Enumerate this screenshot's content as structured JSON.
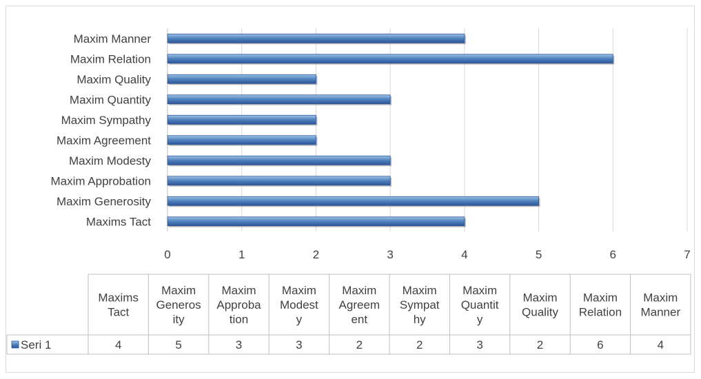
{
  "chart_data": {
    "type": "bar",
    "orientation": "horizontal",
    "categories": [
      "Maxims Tact",
      "Maxim Generosity",
      "Maxim Approbation",
      "Maxim Modesty",
      "Maxim Agreement",
      "Maxim Sympathy",
      "Maxim Quantity",
      "Maxim Quality",
      "Maxim Relation",
      "Maxim Manner"
    ],
    "series": [
      {
        "name": "Seri 1",
        "values": [
          4,
          5,
          3,
          3,
          2,
          2,
          3,
          2,
          6,
          4
        ]
      }
    ],
    "xlim": [
      0,
      7
    ],
    "xticks": [
      "0",
      "1",
      "2",
      "3",
      "4",
      "5",
      "6",
      "7"
    ],
    "grid": true,
    "colors": {
      "bar": "#4f81bd",
      "bar_light": "#9dc3e6",
      "bar_dark": "#2f5597"
    },
    "data_table": {
      "header_lines": [
        [
          "Maxims",
          "Tact"
        ],
        [
          "Maxim",
          "Generos",
          "ity"
        ],
        [
          "Maxim",
          "Approba",
          "tion"
        ],
        [
          "Maxim",
          "Modest",
          "y"
        ],
        [
          "Maxim",
          "Agreem",
          "ent"
        ],
        [
          "Maxim",
          "Sympat",
          "hy"
        ],
        [
          "Maxim",
          "Quantit",
          "y"
        ],
        [
          "Maxim",
          "Quality"
        ],
        [
          "Maxim",
          "Relation"
        ],
        [
          "Maxim",
          "Manner"
        ]
      ],
      "row_label": "Seri 1",
      "values": [
        "4",
        "5",
        "3",
        "3",
        "2",
        "2",
        "3",
        "2",
        "6",
        "4"
      ]
    }
  }
}
